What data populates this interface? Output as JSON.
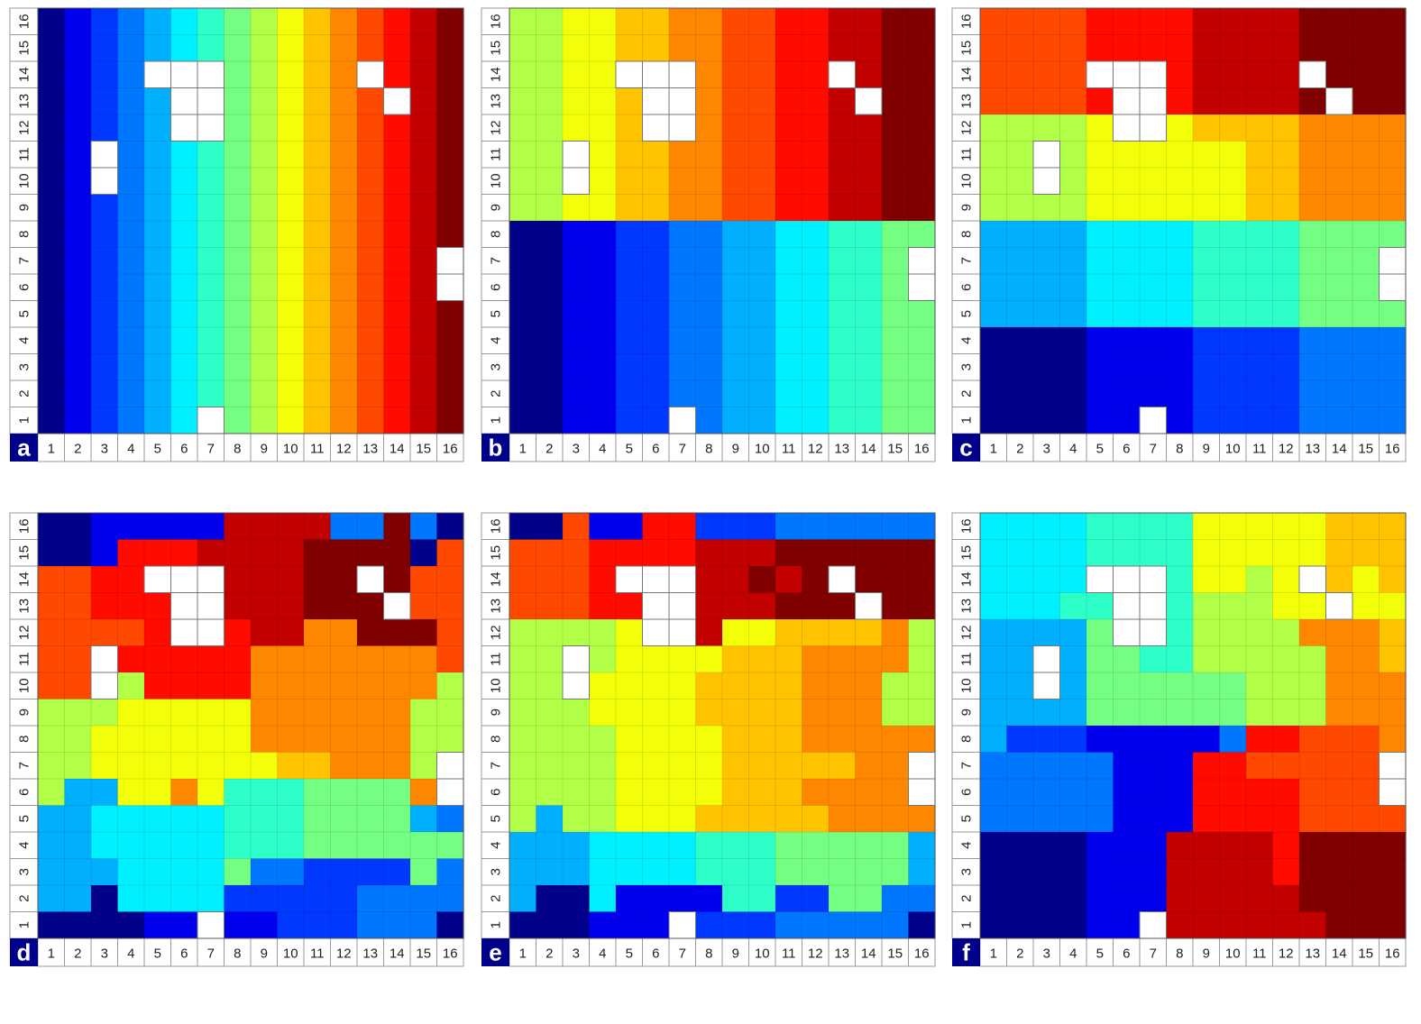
{
  "colormap": [
    "#00008b",
    "#0000ef",
    "#0038ff",
    "#0077ff",
    "#00b0ff",
    "#00f0ff",
    "#2effc8",
    "#75ff82",
    "#b2ff47",
    "#f2ff08",
    "#ffc300",
    "#ff8700",
    "#ff4800",
    "#ff0b00",
    "#c30000",
    "#800000"
  ],
  "missing_color": "#ffffff",
  "chart_data": [
    {
      "type": "heatmap",
      "panel_label": "a",
      "x_ticks": [
        "1",
        "2",
        "3",
        "4",
        "5",
        "6",
        "7",
        "8",
        "9",
        "10",
        "11",
        "12",
        "13",
        "14",
        "15",
        "16"
      ],
      "y_ticks": [
        "1",
        "2",
        "3",
        "4",
        "5",
        "6",
        "7",
        "8",
        "9",
        "10",
        "11",
        "12",
        "13",
        "14",
        "15",
        "16"
      ],
      "missing_cells": [
        [
          7,
          1
        ],
        [
          3,
          10
        ],
        [
          3,
          11
        ],
        [
          6,
          12
        ],
        [
          7,
          12
        ],
        [
          6,
          13
        ],
        [
          7,
          13
        ],
        [
          14,
          13
        ],
        [
          5,
          14
        ],
        [
          6,
          14
        ],
        [
          7,
          14
        ],
        [
          13,
          14
        ],
        [
          16,
          6
        ],
        [
          16,
          7
        ]
      ],
      "grid_rows_top_to_bottom": [
        "0123456789ABCDEF",
        "0123456789ABCDEF",
        "0123456789ABCDEF",
        "0123456789ABCDEF",
        "0123456789ABCDEF",
        "0123456789ABCDEF",
        "0123456789ABCDEF",
        "0123456789ABCDEF",
        "0123456789ABCDEF",
        "0123456789ABCDEF",
        "0123456789ABCDEF",
        "0123456789ABCDEF",
        "0123456789ABCDEF",
        "0123456789ABCDEF",
        "0123456789ABCDEF",
        "0123456789ABCDEF"
      ]
    },
    {
      "type": "heatmap",
      "panel_label": "b",
      "x_ticks": [
        "1",
        "2",
        "3",
        "4",
        "5",
        "6",
        "7",
        "8",
        "9",
        "10",
        "11",
        "12",
        "13",
        "14",
        "15",
        "16"
      ],
      "y_ticks": [
        "1",
        "2",
        "3",
        "4",
        "5",
        "6",
        "7",
        "8",
        "9",
        "10",
        "11",
        "12",
        "13",
        "14",
        "15",
        "16"
      ],
      "missing_cells": [
        [
          7,
          1
        ],
        [
          3,
          10
        ],
        [
          3,
          11
        ],
        [
          6,
          12
        ],
        [
          7,
          12
        ],
        [
          6,
          13
        ],
        [
          7,
          13
        ],
        [
          14,
          13
        ],
        [
          5,
          14
        ],
        [
          6,
          14
        ],
        [
          7,
          14
        ],
        [
          13,
          14
        ],
        [
          16,
          6
        ],
        [
          16,
          7
        ]
      ],
      "grid_rows_top_to_bottom": [
        "8899AABBCCDDEEFF",
        "8899AABBCCDDEEFF",
        "8899AABBCCDDEEFF",
        "8899AABBCCDDEEFF",
        "8899AABBCCDDEEFF",
        "8899AABBCCDDEEFF",
        "8899AABBCCDDEEFF",
        "8899AABBCCDDEEFF",
        "0011223344556677",
        "0011223344556677",
        "0011223344556677",
        "0011223344556677",
        "0011223344556677",
        "0011223344556677",
        "0011223344556677",
        "0011223344556677"
      ]
    },
    {
      "type": "heatmap",
      "panel_label": "c",
      "x_ticks": [
        "1",
        "2",
        "3",
        "4",
        "5",
        "6",
        "7",
        "8",
        "9",
        "10",
        "11",
        "12",
        "13",
        "14",
        "15",
        "16"
      ],
      "y_ticks": [
        "1",
        "2",
        "3",
        "4",
        "5",
        "6",
        "7",
        "8",
        "9",
        "10",
        "11",
        "12",
        "13",
        "14",
        "15",
        "16"
      ],
      "missing_cells": [
        [
          7,
          1
        ],
        [
          3,
          10
        ],
        [
          3,
          11
        ],
        [
          6,
          12
        ],
        [
          7,
          12
        ],
        [
          6,
          13
        ],
        [
          7,
          13
        ],
        [
          14,
          13
        ],
        [
          5,
          14
        ],
        [
          6,
          14
        ],
        [
          7,
          14
        ],
        [
          13,
          14
        ],
        [
          16,
          6
        ],
        [
          16,
          7
        ]
      ],
      "grid_rows_top_to_bottom": [
        "CCCCDDDDEEEEFFFF",
        "CCCCDDDDEEEEFFFF",
        "CCCCDDDDEEEEFFFF",
        "CCCCDDDDEEEEFFFF",
        "88889999AAAABBBB",
        "8888999999AABBBB",
        "8888999999AABBBB",
        "8888999999AABBBB",
        "4444555566667777",
        "4444555566667777",
        "4444555566667777",
        "4444555566667777",
        "0000111122223333",
        "0000111122223333",
        "0000111122223333",
        "0000111122223333"
      ]
    },
    {
      "type": "heatmap",
      "panel_label": "d",
      "x_ticks": [
        "1",
        "2",
        "3",
        "4",
        "5",
        "6",
        "7",
        "8",
        "9",
        "10",
        "11",
        "12",
        "13",
        "14",
        "15",
        "16"
      ],
      "y_ticks": [
        "1",
        "2",
        "3",
        "4",
        "5",
        "6",
        "7",
        "8",
        "9",
        "10",
        "11",
        "12",
        "13",
        "14",
        "15",
        "16"
      ],
      "missing_cells": [
        [
          7,
          1
        ],
        [
          3,
          10
        ],
        [
          3,
          11
        ],
        [
          6,
          12
        ],
        [
          7,
          12
        ],
        [
          6,
          13
        ],
        [
          7,
          13
        ],
        [
          14,
          13
        ],
        [
          5,
          14
        ],
        [
          6,
          14
        ],
        [
          7,
          14
        ],
        [
          13,
          14
        ],
        [
          16,
          6
        ],
        [
          16,
          7
        ]
      ],
      "grid_rows_top_to_bottom": [
        "0011111EEEE33F30",
        "001DDDEEEEFFFF0C",
        "CCDDDDEEEEFFFFCC",
        "CCDDDDEEEEFFFFCC",
        "CCCCDDDDEEBBFFFC",
        "CCCDDDDDBBBBBBBC",
        "CCC8DDDDBBBBBBB8",
        "88899999BBBBBB88",
        "88999999BBBBBB88",
        "889999999AABBB88",
        "84499B96667777B4",
        "4455555666777743",
        "4455555666777777",
        "4445555733222273",
        "4405555222223333",
        "0000111112223330"
      ]
    },
    {
      "type": "heatmap",
      "panel_label": "e",
      "x_ticks": [
        "1",
        "2",
        "3",
        "4",
        "5",
        "6",
        "7",
        "8",
        "9",
        "10",
        "11",
        "12",
        "13",
        "14",
        "15",
        "16"
      ],
      "y_ticks": [
        "1",
        "2",
        "3",
        "4",
        "5",
        "6",
        "7",
        "8",
        "9",
        "10",
        "11",
        "12",
        "13",
        "14",
        "15",
        "16"
      ],
      "missing_cells": [
        [
          7,
          1
        ],
        [
          3,
          10
        ],
        [
          3,
          11
        ],
        [
          6,
          12
        ],
        [
          7,
          12
        ],
        [
          6,
          13
        ],
        [
          7,
          13
        ],
        [
          14,
          13
        ],
        [
          5,
          14
        ],
        [
          6,
          14
        ],
        [
          7,
          14
        ],
        [
          13,
          14
        ],
        [
          16,
          6
        ],
        [
          16,
          7
        ]
      ],
      "grid_rows_top_to_bottom": [
        "00C11DD222333333",
        "CCCDDDDEEEFFFFFF",
        "CCCDDDDEEFEFFFFF",
        "CCCDDDDEEEFFFFFF",
        "8888999E99AAAAB8",
        "88889999AAABBBB8",
        "8889999AAAABBB88",
        "8889999AAAABBB88",
        "88889999AAABBBBB",
        "88889999AAAAABBB",
        "88889999AAABBBBB",
        "8488999AAAAABBBB",
        "4445555666777774",
        "4445555666777774",
        "4005111166227733",
        "0001111222333330"
      ]
    },
    {
      "type": "heatmap",
      "panel_label": "f",
      "x_ticks": [
        "1",
        "2",
        "3",
        "4",
        "5",
        "6",
        "7",
        "8",
        "9",
        "10",
        "11",
        "12",
        "13",
        "14",
        "15",
        "16"
      ],
      "y_ticks": [
        "1",
        "2",
        "3",
        "4",
        "5",
        "6",
        "7",
        "8",
        "9",
        "10",
        "11",
        "12",
        "13",
        "14",
        "15",
        "16"
      ],
      "missing_cells": [
        [
          7,
          1
        ],
        [
          3,
          10
        ],
        [
          3,
          11
        ],
        [
          6,
          12
        ],
        [
          7,
          12
        ],
        [
          6,
          13
        ],
        [
          7,
          13
        ],
        [
          14,
          13
        ],
        [
          5,
          14
        ],
        [
          6,
          14
        ],
        [
          7,
          14
        ],
        [
          13,
          14
        ],
        [
          16,
          6
        ],
        [
          16,
          7
        ]
      ],
      "grid_rows_top_to_bottom": [
        "5555666699999AAA",
        "5555666699999AAA",
        "5555666699899A9A",
        "5556666688899A99",
        "444476668888BBBA",
        "4444776688888BBA",
        "4444777777888BBB",
        "4444777777888BBB",
        "4222111113DDCCCB",
        "33333111DDCCCCCC",
        "33333111DDDDCCCC",
        "33333111DDDDCCCC",
        "0000111EEEEDFFFF",
        "0000111EEEEDFFFF",
        "0000111EEEEEFFFF",
        "0000111EEEEEEFFF"
      ]
    }
  ]
}
